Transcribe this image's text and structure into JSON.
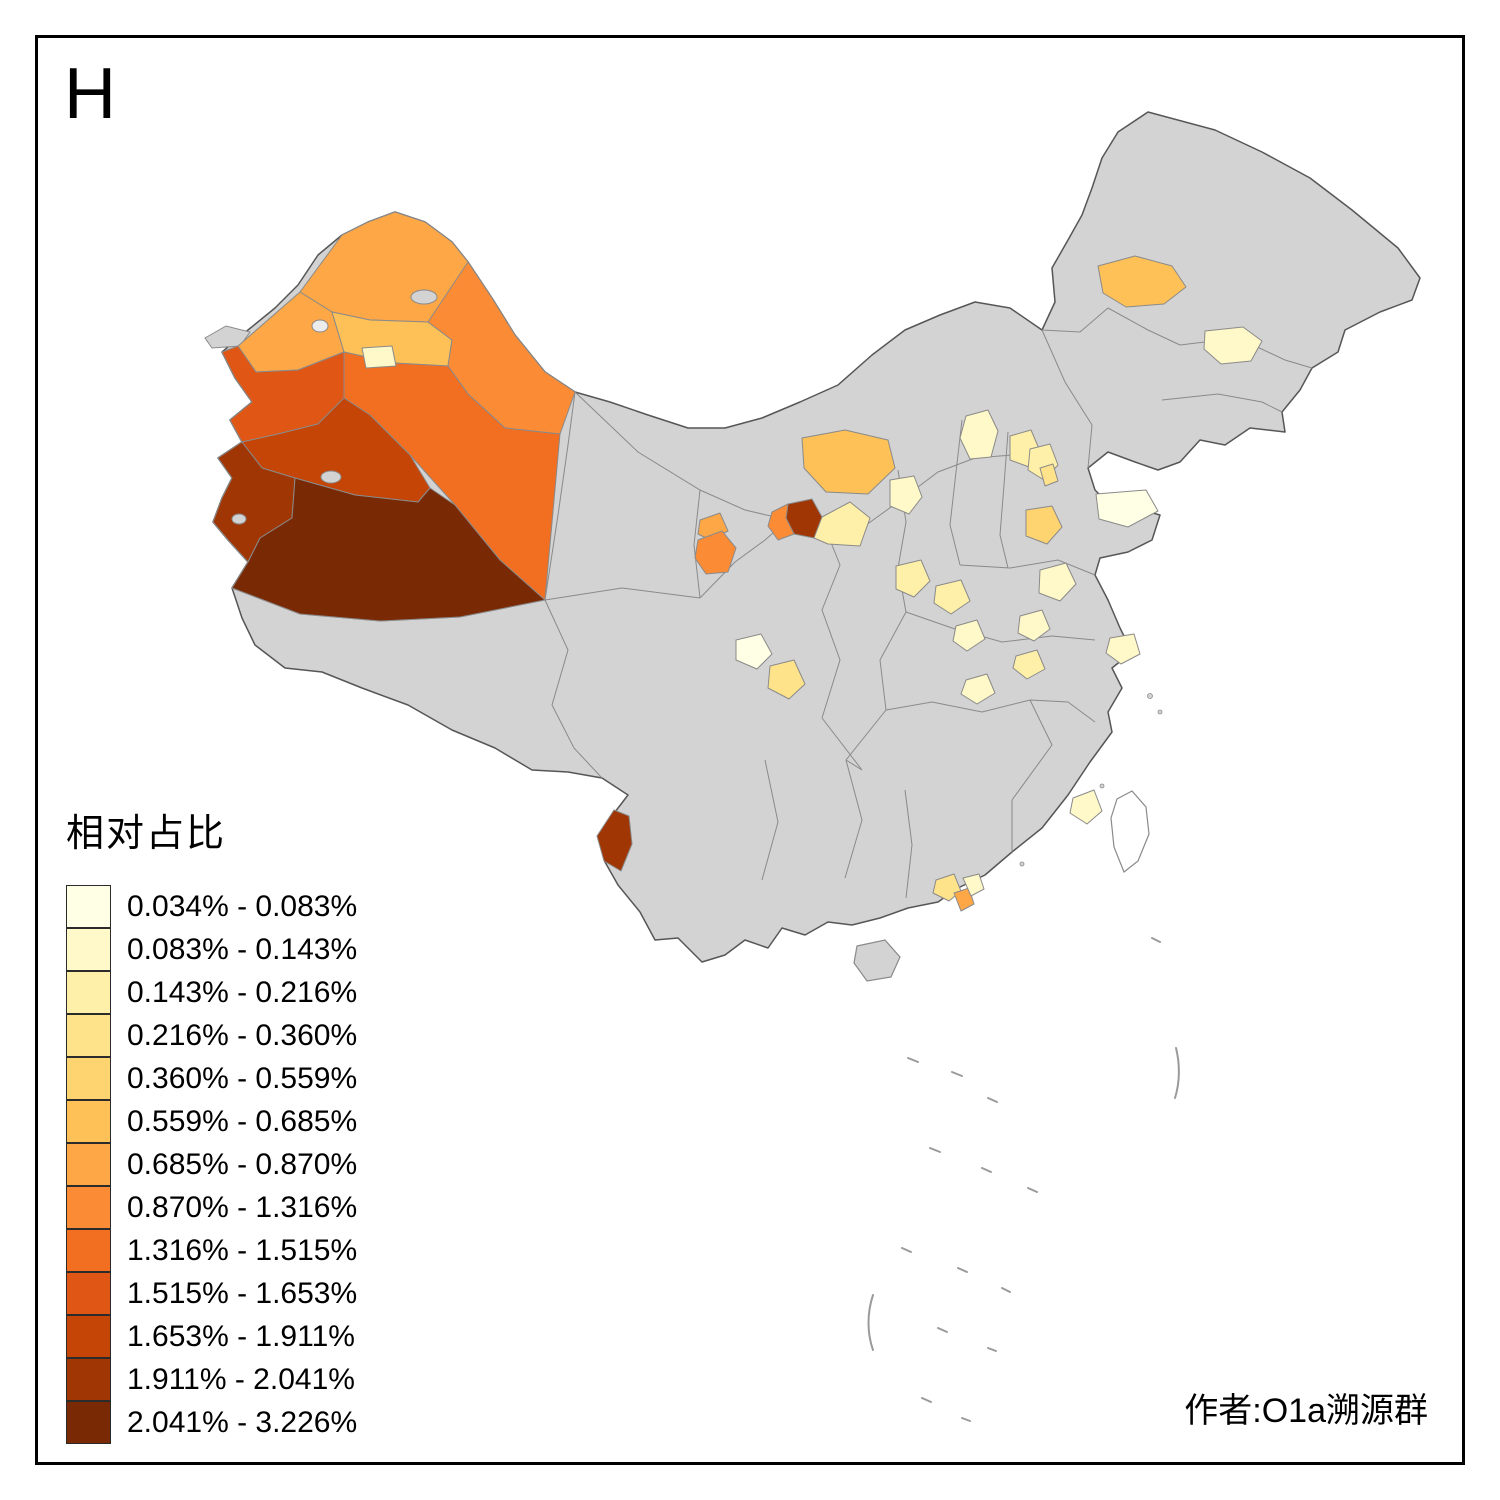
{
  "title": "H",
  "author": "作者:O1a溯源群",
  "legend": {
    "title": "相对占比",
    "items": [
      {
        "label": "0.034% - 0.083%",
        "color": "#FFFFE5"
      },
      {
        "label": "0.083% - 0.143%",
        "color": "#FFF8C8"
      },
      {
        "label": "0.143% - 0.216%",
        "color": "#FEF0A8"
      },
      {
        "label": "0.216% - 0.360%",
        "color": "#FEE38B"
      },
      {
        "label": "0.360% - 0.559%",
        "color": "#FED471"
      },
      {
        "label": "0.559% - 0.685%",
        "color": "#FEC157"
      },
      {
        "label": "0.685% - 0.870%",
        "color": "#FDA746"
      },
      {
        "label": "0.870% - 1.316%",
        "color": "#FB8C35"
      },
      {
        "label": "1.316% - 1.515%",
        "color": "#F26E21"
      },
      {
        "label": "1.515% - 1.653%",
        "color": "#E05614"
      },
      {
        "label": "1.653% - 1.911%",
        "color": "#C54506"
      },
      {
        "label": "1.911% - 2.041%",
        "color": "#A03603"
      },
      {
        "label": "2.041% - 3.226%",
        "color": "#792A05"
      }
    ]
  },
  "map": {
    "base_fill": "#D3D3D3",
    "no_data_fill": "#FFFFFF",
    "outer_border": "#565656",
    "inner_border": "#8A8A8A",
    "regions": {
      "xinjiang_altay": "#FDA746",
      "xinjiang_tacheng": "#FDA746",
      "xinjiang_karamay_changji": "#FEC157",
      "xinjiang_shihezi": "#FFF8C8",
      "xinjiang_turpan_hami": "#FB8C35",
      "xinjiang_ili": "#E05614",
      "xinjiang_bayingol": "#F26E21",
      "xinjiang_aksu": "#C54506",
      "xinjiang_kashgar": "#A03603",
      "xinjiang_hotan": "#792A05",
      "neimenggu_alxa": "#FEC157",
      "ningxia_north_dark": "#A03603",
      "ningxia_yinchuan": "#FB8C35",
      "shaanxi_yulin_pale": "#FEF0A8",
      "gansu_upper": "#FDA746",
      "gansu_lanzhou": "#FB8C35",
      "neimenggu_northeast": "#FEC157",
      "jilin_pale": "#FFF8C8",
      "shanxi_north": "#FFF8C8",
      "shanxi_center": "#FEF0A8",
      "beijing_area": "#FEF0A8",
      "tianjin_area": "#FEE38B",
      "hebei_coast_pale": "#FFFFE5",
      "shandong_jinan": "#FED471",
      "shandong_south": "#FFF8C8",
      "jiangsu_north": "#FFF8C8",
      "shaanxi_yanan": "#FFF8C8",
      "shaanxi_xian": "#FEF0A8",
      "henan_southwest": "#FEF0A8",
      "shaanxi_south": "#FFF8C8",
      "hubei_west": "#FFF8C8",
      "henan_east": "#FEF0A8",
      "sichuan_chengdu": "#FFFFE5",
      "sichuan_east": "#FEE38B",
      "shanghai_area": "#FFF8C8",
      "fujian_coast": "#FFF8C8",
      "guangdong_foshan": "#FEE38B",
      "guangdong_guangzhou": "#FDA746",
      "guangdong_east": "#FFF8C8",
      "yunnan_west": "#A03603"
    }
  }
}
